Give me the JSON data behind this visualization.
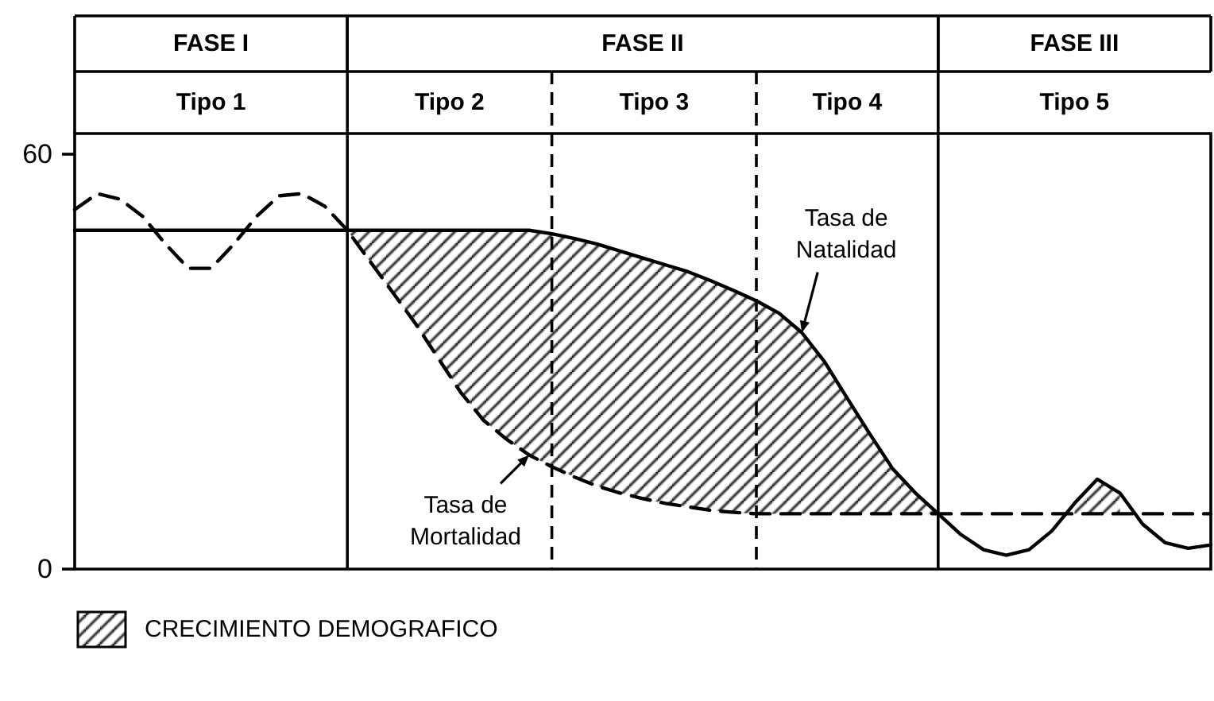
{
  "chart_data": {
    "type": "line",
    "categories": [
      null,
      null,
      null,
      null,
      null,
      null,
      null,
      null,
      null,
      null,
      null,
      null,
      null,
      null,
      null,
      null,
      null,
      null,
      null,
      null,
      null,
      null,
      null,
      null,
      null,
      null,
      null,
      null,
      null,
      null,
      null,
      null,
      null,
      null,
      null,
      null,
      null,
      null,
      null,
      null,
      null,
      null,
      null,
      null,
      null,
      null,
      null,
      null,
      null,
      null,
      null
    ],
    "ylim": [
      0,
      63
    ],
    "yticks": [
      0,
      60
    ],
    "tick_labels": "y",
    "grid": "x",
    "legend": "bottom left",
    "annotations": [
      "FASE I",
      "FASE II",
      "FASE III",
      "Tipo 1",
      "Tipo 2",
      "Tipo 3",
      "Tipo 4",
      "Tipo 5"
    ],
    "series": [
      {
        "name": "Tasa de Natalidad",
        "color": "#000000",
        "line_style": "solid",
        "values": [
          49,
          49,
          49,
          49,
          49,
          49,
          49,
          49,
          49,
          49,
          49,
          49,
          49,
          49,
          49,
          49,
          49,
          49,
          49,
          49,
          49,
          48.5,
          47.8,
          47,
          46,
          45,
          44,
          43,
          41.7,
          40.3,
          38.8,
          37,
          34.2,
          30,
          24.7,
          19.5,
          14.5,
          11,
          8,
          5,
          2.8,
          2,
          2.8,
          5.5,
          9.5,
          13,
          11,
          6.5,
          3.8,
          3,
          3.5
        ]
      },
      {
        "name": "Tasa de Mortalidad",
        "color": "#000000",
        "line_style": "dashed",
        "values": [
          52,
          54.3,
          53.5,
          51,
          47,
          43.5,
          43.5,
          47,
          51,
          54,
          54.3,
          52.5,
          49,
          44.5,
          40,
          35.5,
          30.5,
          25.5,
          21.5,
          18.8,
          16.5,
          14.8,
          13.3,
          12,
          11,
          10.2,
          9.5,
          9,
          8.5,
          8.2,
          8,
          8,
          8,
          8,
          8,
          8,
          8,
          8,
          8,
          8,
          8,
          8,
          8,
          8,
          8,
          8,
          8,
          8,
          8,
          8,
          8
        ]
      },
      {
        "type": "area",
        "name": "CRECIMIENTO DEMOGRAFICO",
        "color": "#000000",
        "values": [
          null,
          null,
          null,
          null,
          null,
          null,
          null,
          null,
          null,
          null,
          null,
          null,
          49,
          49,
          49,
          49,
          49,
          49,
          49,
          49,
          49,
          48.5,
          47.8,
          47,
          46,
          45,
          44,
          43,
          41.7,
          40.3,
          38.8,
          37,
          34.2,
          30,
          24.7,
          19.5,
          14.5,
          11,
          8,
          null,
          null,
          null,
          null,
          null,
          9.5,
          13,
          11,
          null,
          null,
          null,
          null
        ]
      }
    ]
  }
}
